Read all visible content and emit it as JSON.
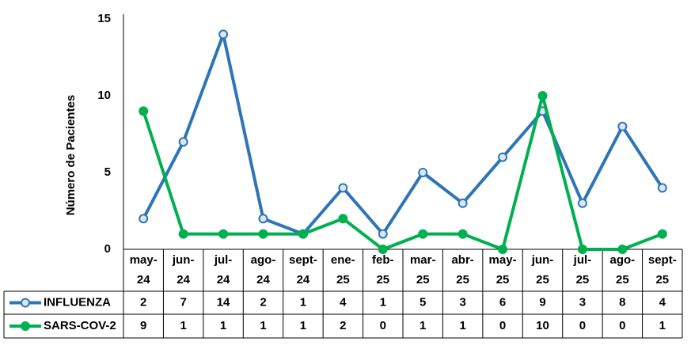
{
  "chart_data": {
    "type": "line",
    "y_label": "Número de Pacientes",
    "categories": [
      "may-24",
      "jun-24",
      "jul-24",
      "ago-24",
      "sept-24",
      "ene-25",
      "feb-25",
      "mar-25",
      "abr-25",
      "may-25",
      "jun-25",
      "jul-25",
      "ago-25",
      "sept-25"
    ],
    "series": [
      {
        "name": "INFLUENZA",
        "color": "#2e75b6",
        "values": [
          2,
          7,
          14,
          2,
          1,
          4,
          1,
          5,
          3,
          6,
          9,
          3,
          8,
          4
        ]
      },
      {
        "name": "SARS-COV-2",
        "color": "#00b050",
        "values": [
          9,
          1,
          1,
          1,
          1,
          2,
          0,
          1,
          1,
          0,
          10,
          0,
          0,
          1
        ]
      }
    ],
    "ylim": [
      0,
      15
    ],
    "yticks": [
      0,
      5,
      10,
      15
    ],
    "grid": false
  }
}
